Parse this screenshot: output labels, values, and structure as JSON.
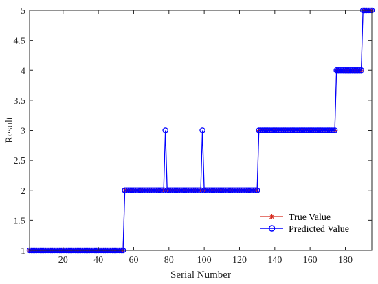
{
  "chart_data": {
    "type": "line",
    "title": "",
    "xlabel": "Serial Number",
    "ylabel": "Result",
    "xlim": [
      1,
      195
    ],
    "ylim": [
      1,
      5
    ],
    "xticks": [
      20,
      40,
      60,
      80,
      100,
      120,
      140,
      160,
      180
    ],
    "yticks": [
      1,
      1.5,
      2,
      2.5,
      3,
      3.5,
      4,
      4.5,
      5
    ],
    "xtick_labels": [
      "20",
      "40",
      "60",
      "80",
      "100",
      "120",
      "140",
      "160",
      "180"
    ],
    "ytick_labels": [
      "1",
      "1.5",
      "2",
      "2.5",
      "3",
      "3.5",
      "4",
      "4.5",
      "5"
    ],
    "grid": false,
    "legend_position": "bottom-right",
    "segments_true": [
      {
        "from": 1,
        "to": 54,
        "value": 1
      },
      {
        "from": 55,
        "to": 130,
        "value": 2
      },
      {
        "from": 131,
        "to": 174,
        "value": 3
      },
      {
        "from": 175,
        "to": 189,
        "value": 4
      },
      {
        "from": 190,
        "to": 195,
        "value": 5
      }
    ],
    "predicted_overrides": [
      {
        "x": 78,
        "value": 3
      },
      {
        "x": 99,
        "value": 3
      }
    ],
    "series": [
      {
        "name": "True Value",
        "color": "#d62a1e",
        "marker": "asterisk"
      },
      {
        "name": "Predicted Value",
        "color": "#0000ff",
        "marker": "circle"
      }
    ]
  }
}
